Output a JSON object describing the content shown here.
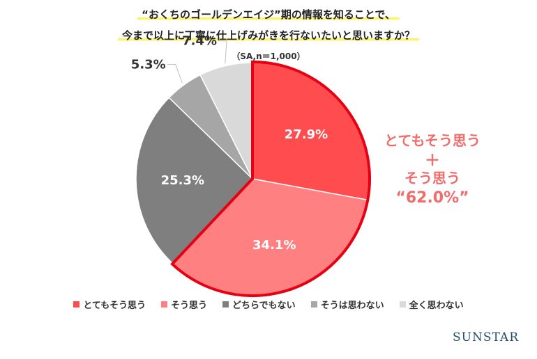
{
  "header": {
    "title_line1": "“おくちのゴールデンエイジ”期の情報を知ることで、",
    "title_line2": "今まで以上に丁寧に仕上げみがきを行ないたいと思いますか？",
    "sample_note": "（SA,n＝1,000）"
  },
  "callout": {
    "line1": "とてもそう思う",
    "line2": "＋",
    "line3": "そう思う",
    "line4": "“62.0%”",
    "color": "#f26b6b"
  },
  "brand": {
    "logo_text": "SUNSTAR"
  },
  "chart_data": {
    "type": "pie",
    "title": "“おくちのゴールデンエイジ”期の情報を知ることで、今まで以上に丁寧に仕上げみがきを行ないたいと思いますか？",
    "categories": [
      "とてもそう思う",
      "そう思う",
      "どちらでもない",
      "そうは思わない",
      "全く思わない"
    ],
    "values": [
      27.9,
      34.1,
      25.3,
      5.3,
      7.4
    ],
    "value_labels": [
      "27.9%",
      "34.1%",
      "25.3%",
      "5.3%",
      "7.4%"
    ],
    "colors": [
      "#ff4d4f",
      "#ff8080",
      "#7f7f7f",
      "#a6a6a6",
      "#d9d9d9"
    ],
    "highlighted_categories": [
      "とてもそう思う",
      "そう思う"
    ],
    "highlight_outline_color": "#e60012",
    "start": "12 o'clock, clockwise",
    "legend_position": "bottom"
  }
}
